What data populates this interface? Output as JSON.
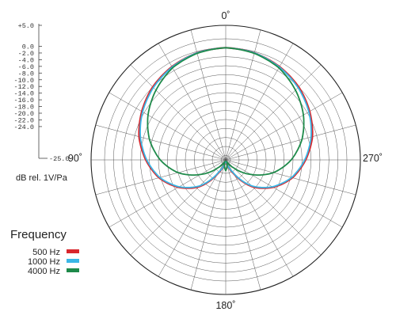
{
  "chart_data": {
    "type": "polar",
    "angle_labels": [
      {
        "angle": 0,
        "text": "0˚"
      },
      {
        "angle": 90,
        "text": "90˚"
      },
      {
        "angle": 180,
        "text": "180˚"
      },
      {
        "angle": 270,
        "text": "270˚"
      }
    ],
    "radial_scale": {
      "top_label": "+5.0",
      "ticks": [
        "0.0",
        "-2.0",
        "-4.0",
        "-6.0",
        "-8.0",
        "-10.0",
        "-12.0",
        "-14.0",
        "-16.0",
        "-18.0",
        "-20.0",
        "-22.0",
        "-24.0"
      ],
      "bottom_label": "-25.0",
      "unit": "dB rel. 1V/Pa",
      "rmax": 5,
      "rmin": -25
    },
    "legend": {
      "title": "Frequency",
      "entries": [
        {
          "label": "500 Hz",
          "color": "#d9262c"
        },
        {
          "label": "1000 Hz",
          "color": "#3ab7e6"
        },
        {
          "label": "4000 Hz",
          "color": "#1e8a4a"
        }
      ]
    },
    "series": [
      {
        "name": "500 Hz",
        "color": "#d9262c",
        "angles": [
          0,
          15,
          30,
          45,
          60,
          75,
          90,
          105,
          120,
          135,
          150,
          165,
          180
        ],
        "db": [
          0,
          -0.3,
          -1.0,
          -2.0,
          -3.4,
          -5.0,
          -7.2,
          -9.6,
          -12.8,
          -16.5,
          -21.5,
          -24.3,
          -24.5
        ]
      },
      {
        "name": "1000 Hz",
        "color": "#3ab7e6",
        "angles": [
          0,
          15,
          30,
          45,
          60,
          75,
          90,
          105,
          120,
          135,
          150,
          165,
          180
        ],
        "db": [
          0,
          -0.3,
          -1.1,
          -2.2,
          -3.6,
          -5.3,
          -7.4,
          -9.8,
          -13.0,
          -16.8,
          -21.8,
          -24.4,
          -24.6
        ]
      },
      {
        "name": "4000 Hz",
        "color": "#1e8a4a",
        "angles": [
          0,
          15,
          30,
          45,
          60,
          75,
          90,
          105,
          120,
          135,
          150,
          165,
          180
        ],
        "db": [
          0,
          -0.4,
          -1.3,
          -3.0,
          -5.0,
          -7.4,
          -10.4,
          -14.0,
          -18.5,
          -22.5,
          -24.6,
          -23.8,
          -22.6
        ]
      }
    ]
  }
}
